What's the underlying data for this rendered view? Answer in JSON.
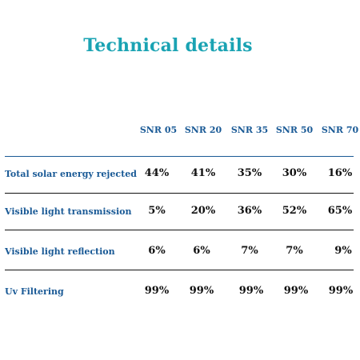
{
  "title": "Technical details",
  "columns": [
    "SNR 05",
    "SNR 20",
    "SNR 35",
    "SNR 50",
    "SNR 70"
  ],
  "rows": [
    {
      "label": "Total solar energy rejected",
      "values": [
        "44%",
        "41%",
        "35%",
        "30%",
        "16%"
      ]
    },
    {
      "label": "Visible light transmission",
      "values": [
        "5%",
        "20%",
        "36%",
        "52%",
        "65%"
      ]
    },
    {
      "label": "Visible light reflection",
      "values": [
        "6%",
        "6%",
        "7%",
        "7%",
        "9%"
      ]
    },
    {
      "label": "Uv Filtering",
      "values": [
        "99%",
        "99%",
        "99%",
        "99%",
        "99%"
      ]
    }
  ],
  "colors": {
    "title": "#1aa3b3",
    "header_text": "#1a5a96",
    "row_label_text": "#1a5a96",
    "value_text": "#111111",
    "top_rule": "#1a5a96",
    "row_rule": "#111111"
  }
}
